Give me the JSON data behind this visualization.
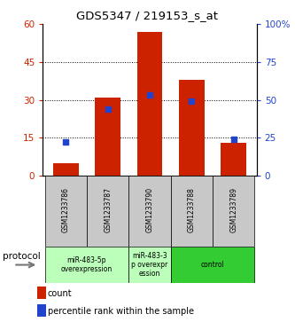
{
  "title": "GDS5347 / 219153_s_at",
  "samples": [
    "GSM1233786",
    "GSM1233787",
    "GSM1233790",
    "GSM1233788",
    "GSM1233789"
  ],
  "counts": [
    5,
    31,
    57,
    38,
    13
  ],
  "percentile_ranks": [
    22,
    44,
    53,
    49,
    24
  ],
  "ylim_left": [
    0,
    60
  ],
  "ylim_right": [
    0,
    100
  ],
  "yticks_left": [
    0,
    15,
    30,
    45,
    60
  ],
  "yticks_right": [
    0,
    25,
    50,
    75,
    100
  ],
  "bar_color": "#cc2200",
  "dot_color": "#2244cc",
  "bg_sample_label": "#c8c8c8",
  "bg_protocol_light": "#bbffbb",
  "bg_protocol_dark": "#33cc33",
  "protocol_groups": [
    {
      "label": "miR-483-5p\noverexpression",
      "start": 0,
      "end": 1,
      "light": true
    },
    {
      "label": "miR-483-3\np overexpr\nession",
      "start": 2,
      "end": 2,
      "light": true
    },
    {
      "label": "control",
      "start": 3,
      "end": 4,
      "light": false
    }
  ],
  "protocol_label": "protocol",
  "legend_count_label": "count",
  "legend_pct_label": "percentile rank within the sample"
}
